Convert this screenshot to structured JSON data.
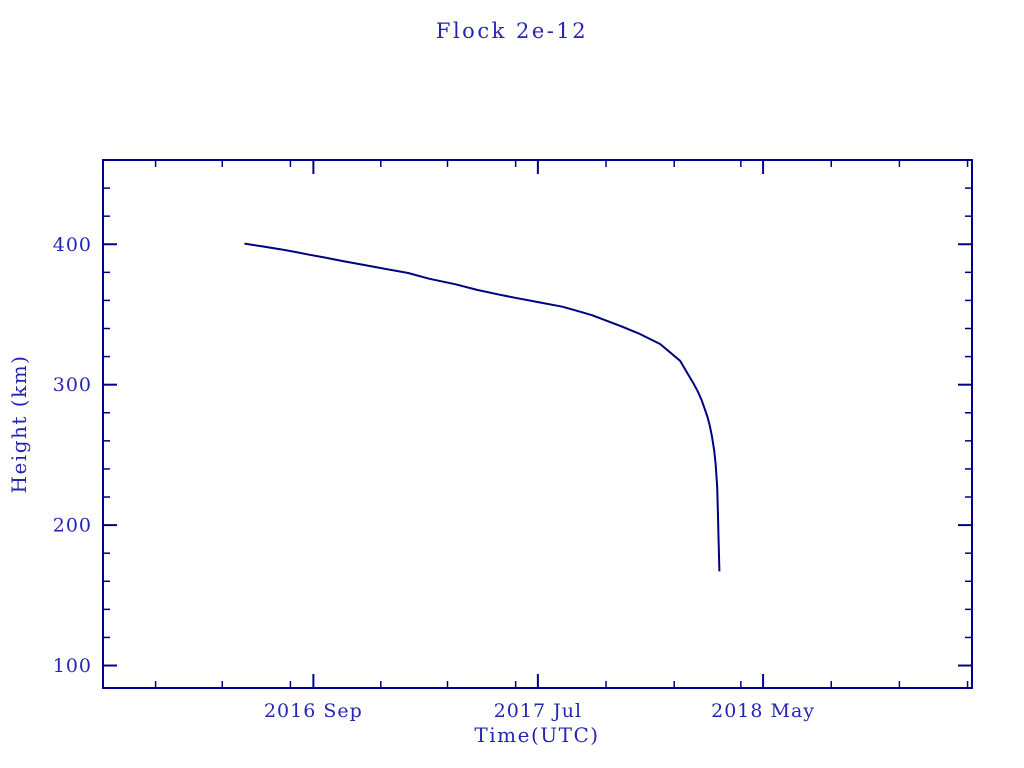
{
  "chart_data": {
    "type": "line",
    "title": "Flock 2e-12",
    "xlabel": "Time(UTC)",
    "ylabel": "Height (km)",
    "grid": false,
    "legend": "none",
    "colors": {
      "frame": "#000088",
      "line": "#000080",
      "text": "#2525b4",
      "background": "#ffffff"
    },
    "x_axis": {
      "start": "2015-11-22",
      "end": "2019-02-07",
      "major_ticks": [
        {
          "date": "2016-09-01",
          "label": "2016 Sep"
        },
        {
          "date": "2017-07-01",
          "label": "2017 Jul"
        },
        {
          "date": "2018-05-01",
          "label": "2018 May"
        }
      ],
      "minor_ticks": [
        "2016-02-01",
        "2016-05-01",
        "2016-08-01",
        "2016-12-01",
        "2017-03-01",
        "2017-06-01",
        "2017-10-01",
        "2018-01-01",
        "2018-04-01",
        "2018-08-01",
        "2018-11-01",
        "2019-02-01"
      ]
    },
    "y_axis": {
      "min": 84,
      "max": 460,
      "major_ticks": [
        {
          "value": 100,
          "label": "100"
        },
        {
          "value": 200,
          "label": "200"
        },
        {
          "value": 300,
          "label": "300"
        },
        {
          "value": 400,
          "label": "400"
        }
      ],
      "minor_ticks": [
        120,
        140,
        160,
        180,
        220,
        240,
        260,
        280,
        320,
        340,
        360,
        380,
        420,
        440
      ]
    },
    "series": [
      {
        "name": "height-vs-time",
        "points": [
          [
            "2016-05-31",
            400.5
          ],
          [
            "2016-06-24",
            398.5
          ],
          [
            "2016-07-18",
            396.5
          ],
          [
            "2016-08-08",
            394.5
          ],
          [
            "2016-08-27",
            392.5
          ],
          [
            "2016-09-17",
            390.5
          ],
          [
            "2016-10-11",
            388
          ],
          [
            "2016-11-06",
            385.5
          ],
          [
            "2016-11-26",
            383.5
          ],
          [
            "2017-01-07",
            379.5
          ],
          [
            "2017-02-04",
            375.5
          ],
          [
            "2017-03-12",
            371.5
          ],
          [
            "2017-04-10",
            367.5
          ],
          [
            "2017-05-11",
            364
          ],
          [
            "2017-06-04",
            361.5
          ],
          [
            "2017-07-04",
            358.5
          ],
          [
            "2017-08-03",
            355.5
          ],
          [
            "2017-08-27",
            352
          ],
          [
            "2017-09-12",
            349.5
          ],
          [
            "2017-10-02",
            345.5
          ],
          [
            "2017-10-22",
            341.5
          ],
          [
            "2017-11-16",
            336
          ],
          [
            "2017-12-13",
            329
          ],
          [
            "2018-01-09",
            317
          ],
          [
            "2018-01-19",
            308
          ],
          [
            "2018-01-27",
            301
          ],
          [
            "2018-02-02",
            295
          ],
          [
            "2018-02-07",
            289
          ],
          [
            "2018-02-11",
            283
          ],
          [
            "2018-02-15",
            277
          ],
          [
            "2018-02-18",
            271
          ],
          [
            "2018-02-21",
            263
          ],
          [
            "2018-02-24",
            253
          ],
          [
            "2018-02-26",
            243
          ],
          [
            "2018-02-28",
            227
          ],
          [
            "2018-03-01",
            209
          ],
          [
            "2018-03-02",
            189
          ],
          [
            "2018-03-03",
            167
          ]
        ]
      }
    ]
  }
}
